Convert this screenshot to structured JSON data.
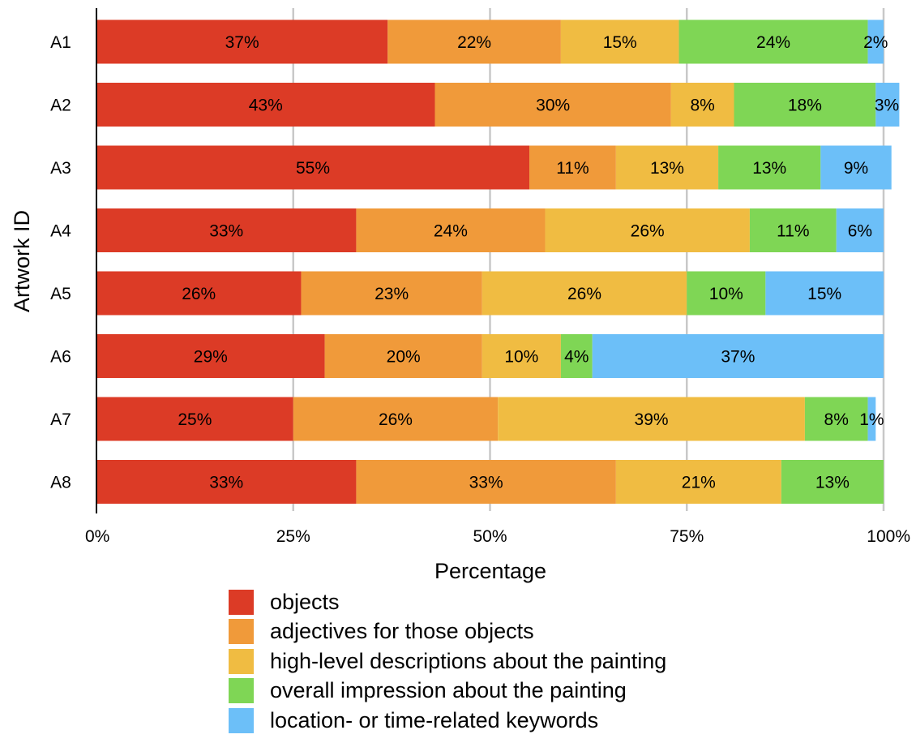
{
  "chart_data": {
    "type": "bar",
    "orientation": "horizontal",
    "stacked": true,
    "title": "",
    "xlabel": "Percentage",
    "ylabel": "Artwork ID",
    "xlim": [
      0,
      100
    ],
    "x_ticks": [
      "0%",
      "25%",
      "50%",
      "75%",
      "100%"
    ],
    "grid": "vertical",
    "legend_position": "bottom",
    "categories": [
      "A1",
      "A2",
      "A3",
      "A4",
      "A5",
      "A6",
      "A7",
      "A8"
    ],
    "series": [
      {
        "name": "objects",
        "color": "#DC3B26",
        "values": [
          37,
          43,
          55,
          33,
          26,
          29,
          25,
          33
        ],
        "labels": [
          "37%",
          "43%",
          "55%",
          "33%",
          "26%",
          "29%",
          "25%",
          "33%"
        ]
      },
      {
        "name": "adjectives for those objects",
        "color": "#F09A3A",
        "values": [
          22,
          30,
          11,
          24,
          23,
          20,
          26,
          33
        ],
        "labels": [
          "22%",
          "30%",
          "11%",
          "24%",
          "23%",
          "20%",
          "26%",
          "33%"
        ]
      },
      {
        "name": "high-level descriptions about the painting",
        "color": "#F0BC42",
        "values": [
          15,
          8,
          13,
          26,
          26,
          10,
          39,
          21
        ],
        "labels": [
          "15%",
          "8%",
          "13%",
          "26%",
          "26%",
          "10%",
          "39%",
          "21%"
        ]
      },
      {
        "name": "overall impression about the painting",
        "color": "#7FD655",
        "values": [
          24,
          18,
          13,
          11,
          10,
          4,
          8,
          13
        ],
        "labels": [
          "24%",
          "18%",
          "13%",
          "11%",
          "10%",
          "4%",
          "8%",
          "13%"
        ]
      },
      {
        "name": "location- or time-related keywords",
        "color": "#6CBFF8",
        "values": [
          2,
          3,
          9,
          6,
          15,
          37,
          1,
          0
        ],
        "labels": [
          "2%",
          "3%",
          "9%",
          "6%",
          "15%",
          "37%",
          "1%",
          ""
        ]
      }
    ]
  }
}
